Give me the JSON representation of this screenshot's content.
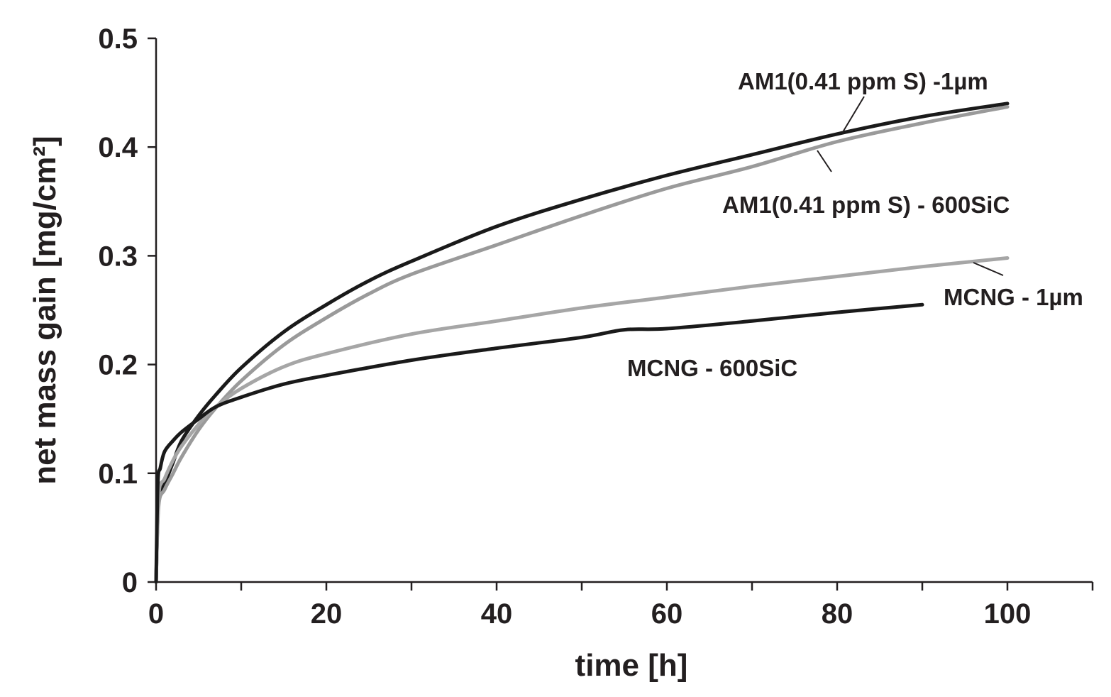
{
  "chart_data": {
    "type": "line",
    "title": "",
    "xlabel": "time [h]",
    "ylabel": "net mass gain [mg/cm²]",
    "xlim": [
      0,
      110
    ],
    "ylim": [
      0,
      0.5
    ],
    "xticks": [
      0,
      20,
      40,
      60,
      80,
      100
    ],
    "yticks": [
      0,
      0.1,
      0.2,
      0.3,
      0.4,
      0.5
    ],
    "xtick_labels": [
      "0",
      "20",
      "40",
      "60",
      "80",
      "100"
    ],
    "ytick_labels": [
      "0",
      "0.1",
      "0.2",
      "0.3",
      "0.4",
      "0.5"
    ],
    "grid": false,
    "legend": "inline labels",
    "series": [
      {
        "name": "AM1(0.41 ppm S) -1µm",
        "color": "#1a1a1a",
        "x": [
          0,
          0.3,
          1,
          2,
          3,
          5,
          7,
          10,
          15,
          20,
          25,
          30,
          40,
          50,
          60,
          70,
          80,
          90,
          100
        ],
        "y": [
          0,
          0.075,
          0.09,
          0.11,
          0.13,
          0.153,
          0.172,
          0.197,
          0.23,
          0.255,
          0.277,
          0.295,
          0.327,
          0.352,
          0.374,
          0.393,
          0.412,
          0.428,
          0.44
        ]
      },
      {
        "name": "AM1(0.41 ppm S) - 600SiC",
        "color": "#9a9a9a",
        "x": [
          0,
          0.3,
          1,
          2,
          3,
          5,
          7,
          10,
          15,
          20,
          25,
          30,
          40,
          50,
          60,
          70,
          80,
          90,
          100
        ],
        "y": [
          0,
          0.07,
          0.085,
          0.1,
          0.115,
          0.14,
          0.16,
          0.185,
          0.218,
          0.243,
          0.265,
          0.283,
          0.31,
          0.337,
          0.362,
          0.382,
          0.405,
          0.422,
          0.437
        ]
      },
      {
        "name": "MCNG - 1µm",
        "color": "#a6a6a6",
        "x": [
          0,
          0.3,
          1,
          2,
          3,
          5,
          7,
          10,
          15,
          20,
          30,
          40,
          50,
          60,
          70,
          80,
          90,
          100
        ],
        "y": [
          0,
          0.08,
          0.095,
          0.112,
          0.125,
          0.145,
          0.161,
          0.178,
          0.198,
          0.21,
          0.228,
          0.24,
          0.252,
          0.262,
          0.272,
          0.281,
          0.29,
          0.298
        ]
      },
      {
        "name": "MCNG - 600SiC",
        "color": "#1a1a1a",
        "x": [
          0,
          0.2,
          0.5,
          1,
          2,
          3,
          5,
          7,
          10,
          15,
          20,
          30,
          40,
          50,
          55,
          60,
          70,
          80,
          90
        ],
        "y": [
          0,
          0.09,
          0.105,
          0.12,
          0.13,
          0.138,
          0.15,
          0.161,
          0.17,
          0.182,
          0.19,
          0.204,
          0.215,
          0.225,
          0.232,
          0.233,
          0.24,
          0.248,
          0.255
        ]
      }
    ],
    "annotations": [
      {
        "text": "AM1(0.41 ppm S) -1µm",
        "series": 0
      },
      {
        "text": "AM1(0.41 ppm S) - 600SiC",
        "series": 1
      },
      {
        "text": "MCNG - 1µm",
        "series": 2
      },
      {
        "text": "MCNG - 600SiC",
        "series": 3
      }
    ]
  }
}
